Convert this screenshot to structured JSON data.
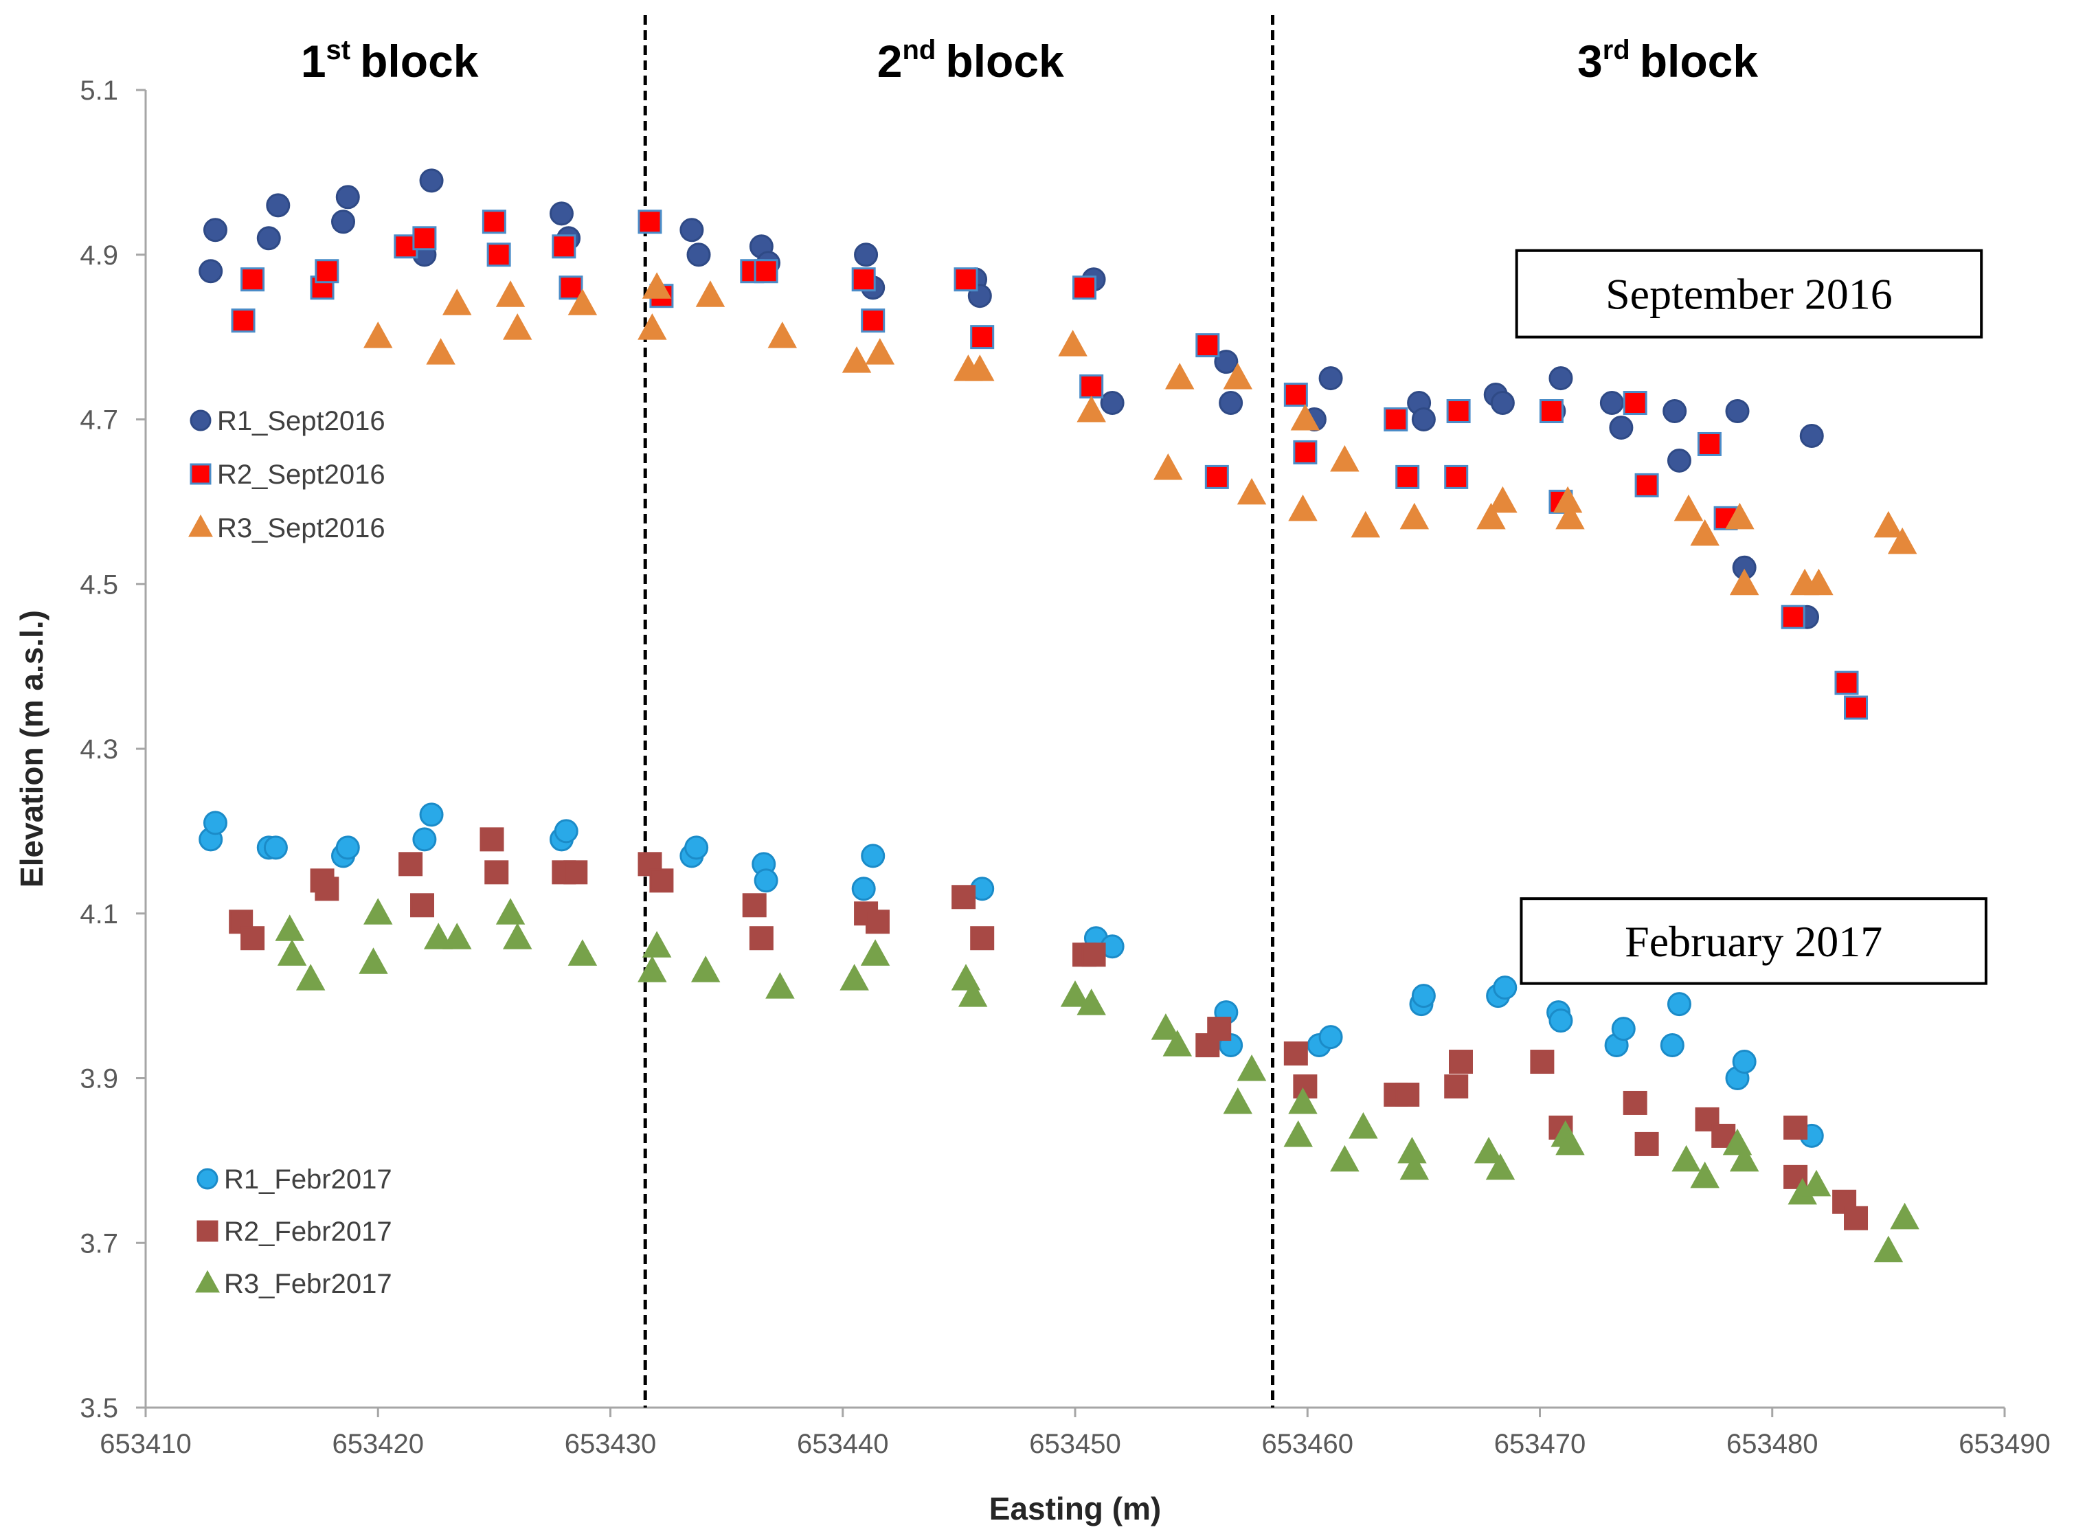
{
  "chart_data": {
    "type": "scatter",
    "title": "",
    "xlabel": "Easting (m)",
    "ylabel": "Elevation (m  a.s.l.)",
    "xlim": [
      653410,
      653490
    ],
    "ylim": [
      3.5,
      5.1
    ],
    "xticks": [
      653410,
      653420,
      653430,
      653440,
      653450,
      653460,
      653470,
      653480,
      653490
    ],
    "yticks": [
      3.5,
      3.7,
      3.9,
      4.1,
      4.3,
      4.5,
      4.7,
      4.9,
      5.1
    ],
    "grid": false,
    "block_dividers": [
      653431.5,
      653458.5
    ],
    "blocks": [
      {
        "num": "1",
        "sup": "st",
        "word": "block",
        "x": 653420.5
      },
      {
        "num": "2",
        "sup": "nd",
        "word": "block",
        "x": 653445.5
      },
      {
        "num": "3",
        "sup": "rd",
        "word": "block",
        "x": 653475.5
      }
    ],
    "period_boxes": [
      {
        "text": "September 2016",
        "x": [
          653469,
          653489
        ],
        "y": [
          4.8,
          4.905
        ]
      },
      {
        "text": "February 2017",
        "x": [
          653469.2,
          653489.2
        ],
        "y": [
          4.015,
          4.118
        ]
      }
    ],
    "series": [
      {
        "name": "R1_Sept2016",
        "marker": "circle",
        "color": "#3A5698",
        "stroke": "#2F4A86",
        "points": [
          [
            653412.8,
            4.88
          ],
          [
            653413.0,
            4.93
          ],
          [
            653415.3,
            4.92
          ],
          [
            653415.7,
            4.96
          ],
          [
            653418.5,
            4.94
          ],
          [
            653418.7,
            4.97
          ],
          [
            653421.7,
            4.91
          ],
          [
            653422.0,
            4.9
          ],
          [
            653422.3,
            4.99
          ],
          [
            653427.9,
            4.95
          ],
          [
            653428.2,
            4.92
          ],
          [
            653433.5,
            4.93
          ],
          [
            653433.8,
            4.9
          ],
          [
            653436.5,
            4.91
          ],
          [
            653436.8,
            4.89
          ],
          [
            653441.0,
            4.9
          ],
          [
            653441.3,
            4.86
          ],
          [
            653445.7,
            4.87
          ],
          [
            653445.9,
            4.85
          ],
          [
            653450.8,
            4.87
          ],
          [
            653451.6,
            4.72
          ],
          [
            653456.5,
            4.77
          ],
          [
            653456.7,
            4.72
          ],
          [
            653460.3,
            4.7
          ],
          [
            653461.0,
            4.75
          ],
          [
            653464.8,
            4.72
          ],
          [
            653465.0,
            4.7
          ],
          [
            653468.1,
            4.73
          ],
          [
            653468.4,
            4.72
          ],
          [
            653470.6,
            4.71
          ],
          [
            653470.9,
            4.75
          ],
          [
            653473.1,
            4.72
          ],
          [
            653473.5,
            4.69
          ],
          [
            653475.8,
            4.71
          ],
          [
            653476.0,
            4.65
          ],
          [
            653478.5,
            4.71
          ],
          [
            653478.8,
            4.52
          ],
          [
            653481.5,
            4.46
          ],
          [
            653481.7,
            4.68
          ]
        ]
      },
      {
        "name": "R2_Sept2016",
        "marker": "square",
        "color": "#FF0000",
        "stroke": "#4A8CC8",
        "points": [
          [
            653414.2,
            4.82
          ],
          [
            653414.6,
            4.87
          ],
          [
            653417.6,
            4.86
          ],
          [
            653417.8,
            4.88
          ],
          [
            653421.2,
            4.91
          ],
          [
            653422.0,
            4.92
          ],
          [
            653425.0,
            4.94
          ],
          [
            653425.2,
            4.9
          ],
          [
            653428.0,
            4.91
          ],
          [
            653428.3,
            4.86
          ],
          [
            653431.7,
            4.94
          ],
          [
            653432.2,
            4.85
          ],
          [
            653436.1,
            4.88
          ],
          [
            653436.7,
            4.88
          ],
          [
            653440.9,
            4.87
          ],
          [
            653441.3,
            4.82
          ],
          [
            653445.3,
            4.87
          ],
          [
            653446.0,
            4.8
          ],
          [
            653450.4,
            4.86
          ],
          [
            653450.7,
            4.74
          ],
          [
            653455.7,
            4.79
          ],
          [
            653456.1,
            4.63
          ],
          [
            653459.5,
            4.73
          ],
          [
            653459.9,
            4.66
          ],
          [
            653463.8,
            4.7
          ],
          [
            653464.3,
            4.63
          ],
          [
            653466.5,
            4.71
          ],
          [
            653466.4,
            4.63
          ],
          [
            653470.5,
            4.71
          ],
          [
            653470.9,
            4.6
          ],
          [
            653474.1,
            4.72
          ],
          [
            653474.6,
            4.62
          ],
          [
            653477.3,
            4.67
          ],
          [
            653478.0,
            4.58
          ],
          [
            653480.9,
            4.46
          ],
          [
            653483.2,
            4.38
          ],
          [
            653483.6,
            4.35
          ]
        ]
      },
      {
        "name": "R3_Sept2016",
        "marker": "triangle",
        "color": "#E5883A",
        "stroke": "#E5883A",
        "points": [
          [
            653420.0,
            4.8
          ],
          [
            653422.7,
            4.78
          ],
          [
            653423.4,
            4.84
          ],
          [
            653425.7,
            4.85
          ],
          [
            653426.0,
            4.81
          ],
          [
            653428.8,
            4.84
          ],
          [
            653431.8,
            4.81
          ],
          [
            653432.0,
            4.86
          ],
          [
            653434.3,
            4.85
          ],
          [
            653437.4,
            4.8
          ],
          [
            653440.6,
            4.77
          ],
          [
            653441.6,
            4.78
          ],
          [
            653445.4,
            4.76
          ],
          [
            653445.9,
            4.76
          ],
          [
            653449.9,
            4.79
          ],
          [
            653450.7,
            4.71
          ],
          [
            653454.0,
            4.64
          ],
          [
            653454.5,
            4.75
          ],
          [
            653457.0,
            4.75
          ],
          [
            653457.6,
            4.61
          ],
          [
            653459.8,
            4.59
          ],
          [
            653459.9,
            4.7
          ],
          [
            653461.6,
            4.65
          ],
          [
            653462.5,
            4.57
          ],
          [
            653464.6,
            4.58
          ],
          [
            653467.9,
            4.58
          ],
          [
            653468.4,
            4.6
          ],
          [
            653471.2,
            4.6
          ],
          [
            653471.3,
            4.58
          ],
          [
            653476.4,
            4.59
          ],
          [
            653477.1,
            4.56
          ],
          [
            653478.6,
            4.58
          ],
          [
            653478.8,
            4.5
          ],
          [
            653481.4,
            4.5
          ],
          [
            653482.0,
            4.5
          ],
          [
            653485.0,
            4.57
          ],
          [
            653485.6,
            4.55
          ]
        ]
      },
      {
        "name": "R1_Febr2017",
        "marker": "circle",
        "color": "#29A9E8",
        "stroke": "#1B8BC8",
        "points": [
          [
            653412.8,
            4.19
          ],
          [
            653413.0,
            4.21
          ],
          [
            653415.3,
            4.18
          ],
          [
            653415.6,
            4.18
          ],
          [
            653418.5,
            4.17
          ],
          [
            653418.7,
            4.18
          ],
          [
            653422.0,
            4.19
          ],
          [
            653422.3,
            4.22
          ],
          [
            653427.9,
            4.19
          ],
          [
            653428.1,
            4.2
          ],
          [
            653433.5,
            4.17
          ],
          [
            653433.7,
            4.18
          ],
          [
            653436.6,
            4.16
          ],
          [
            653436.7,
            4.14
          ],
          [
            653440.9,
            4.13
          ],
          [
            653441.3,
            4.17
          ],
          [
            653446.0,
            4.13
          ],
          [
            653450.9,
            4.07
          ],
          [
            653451.6,
            4.06
          ],
          [
            653456.5,
            3.98
          ],
          [
            653456.7,
            3.94
          ],
          [
            653460.5,
            3.94
          ],
          [
            653461.0,
            3.95
          ],
          [
            653464.9,
            3.99
          ],
          [
            653465.0,
            4.0
          ],
          [
            653468.2,
            4.0
          ],
          [
            653468.5,
            4.01
          ],
          [
            653470.8,
            3.98
          ],
          [
            653470.9,
            3.97
          ],
          [
            653473.3,
            3.94
          ],
          [
            653473.6,
            3.96
          ],
          [
            653475.7,
            3.94
          ],
          [
            653476.0,
            3.99
          ],
          [
            653478.5,
            3.9
          ],
          [
            653478.8,
            3.92
          ],
          [
            653481.7,
            3.83
          ]
        ]
      },
      {
        "name": "R2_Febr2017",
        "marker": "square",
        "color": "#A84945",
        "stroke": "#A84945",
        "points": [
          [
            653414.1,
            4.09
          ],
          [
            653414.6,
            4.07
          ],
          [
            653417.6,
            4.14
          ],
          [
            653417.8,
            4.13
          ],
          [
            653421.4,
            4.16
          ],
          [
            653421.9,
            4.11
          ],
          [
            653424.9,
            4.19
          ],
          [
            653425.1,
            4.15
          ],
          [
            653428.0,
            4.15
          ],
          [
            653428.5,
            4.15
          ],
          [
            653431.7,
            4.16
          ],
          [
            653432.2,
            4.14
          ],
          [
            653436.2,
            4.11
          ],
          [
            653436.5,
            4.07
          ],
          [
            653441.0,
            4.1
          ],
          [
            653441.5,
            4.09
          ],
          [
            653445.2,
            4.12
          ],
          [
            653446.0,
            4.07
          ],
          [
            653450.4,
            4.05
          ],
          [
            653450.8,
            4.05
          ],
          [
            653455.7,
            3.94
          ],
          [
            653456.2,
            3.96
          ],
          [
            653459.5,
            3.93
          ],
          [
            653459.9,
            3.89
          ],
          [
            653463.8,
            3.88
          ],
          [
            653464.3,
            3.88
          ],
          [
            653466.4,
            3.89
          ],
          [
            653466.6,
            3.92
          ],
          [
            653470.1,
            3.92
          ],
          [
            653470.9,
            3.84
          ],
          [
            653474.1,
            3.87
          ],
          [
            653474.6,
            3.82
          ],
          [
            653477.2,
            3.85
          ],
          [
            653477.9,
            3.83
          ],
          [
            653481.0,
            3.84
          ],
          [
            653481.0,
            3.78
          ],
          [
            653483.1,
            3.75
          ],
          [
            653483.6,
            3.73
          ]
        ]
      },
      {
        "name": "R3_Febr2017",
        "marker": "triangle",
        "color": "#77A24A",
        "stroke": "#77A24A",
        "points": [
          [
            653416.2,
            4.08
          ],
          [
            653416.3,
            4.05
          ],
          [
            653417.1,
            4.02
          ],
          [
            653419.8,
            4.04
          ],
          [
            653420.0,
            4.1
          ],
          [
            653422.6,
            4.07
          ],
          [
            653423.4,
            4.07
          ],
          [
            653425.7,
            4.1
          ],
          [
            653426.0,
            4.07
          ],
          [
            653428.8,
            4.05
          ],
          [
            653431.8,
            4.03
          ],
          [
            653432.0,
            4.06
          ],
          [
            653434.1,
            4.03
          ],
          [
            653437.3,
            4.01
          ],
          [
            653440.5,
            4.02
          ],
          [
            653441.4,
            4.05
          ],
          [
            653445.3,
            4.02
          ],
          [
            653445.6,
            4.0
          ],
          [
            653450.0,
            4.0
          ],
          [
            653450.7,
            3.99
          ],
          [
            653453.9,
            3.96
          ],
          [
            653454.4,
            3.94
          ],
          [
            653457.0,
            3.87
          ],
          [
            653457.6,
            3.91
          ],
          [
            653459.6,
            3.83
          ],
          [
            653459.8,
            3.87
          ],
          [
            653461.6,
            3.8
          ],
          [
            653462.4,
            3.84
          ],
          [
            653464.5,
            3.81
          ],
          [
            653464.6,
            3.79
          ],
          [
            653467.8,
            3.81
          ],
          [
            653468.3,
            3.79
          ],
          [
            653471.1,
            3.83
          ],
          [
            653471.3,
            3.82
          ],
          [
            653476.3,
            3.8
          ],
          [
            653477.1,
            3.78
          ],
          [
            653478.5,
            3.82
          ],
          [
            653478.8,
            3.8
          ],
          [
            653481.3,
            3.76
          ],
          [
            653481.9,
            3.77
          ],
          [
            653485.0,
            3.69
          ],
          [
            653485.7,
            3.73
          ]
        ]
      }
    ],
    "legends": [
      {
        "group": "Sept2016",
        "entries": [
          "R1_Sept2016",
          "R2_Sept2016",
          "R3_Sept2016"
        ]
      },
      {
        "group": "Febr2017",
        "entries": [
          "R1_Febr2017",
          "R2_Febr2017",
          "R3_Febr2017"
        ]
      }
    ]
  }
}
